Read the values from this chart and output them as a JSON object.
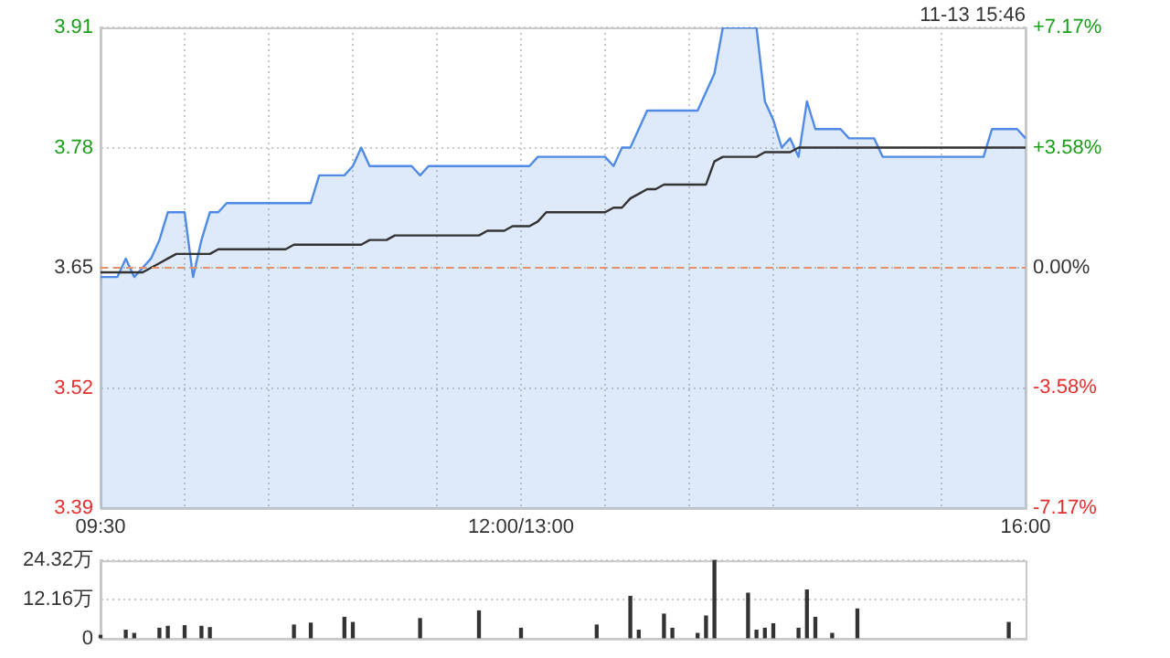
{
  "chart_data": [
    {
      "type": "line",
      "annotations": [
        "11-13 15:46"
      ],
      "categories": [
        "09:30",
        null,
        null,
        null,
        null,
        null,
        null,
        null,
        null,
        null,
        null,
        null,
        null,
        null,
        null,
        null,
        null,
        null,
        null,
        null,
        null,
        null,
        null,
        null,
        null,
        null,
        null,
        null,
        null,
        null,
        null,
        null,
        null,
        null,
        null,
        null,
        null,
        null,
        null,
        null,
        null,
        null,
        null,
        null,
        null,
        null,
        null,
        null,
        null,
        null,
        "12:00/13:00",
        null,
        null,
        null,
        null,
        null,
        null,
        null,
        null,
        null,
        null,
        null,
        null,
        null,
        null,
        null,
        null,
        null,
        null,
        null,
        null,
        null,
        null,
        null,
        null,
        null,
        null,
        null,
        null,
        null,
        null,
        null,
        null,
        null,
        null,
        null,
        null,
        null,
        null,
        null,
        null,
        null,
        null,
        null,
        null,
        null,
        null,
        null,
        null,
        null,
        null,
        null,
        null,
        null,
        null,
        null,
        null,
        null,
        null,
        null,
        "16:00"
      ],
      "series": [
        {
          "type": "area",
          "color": "#4f8ae6",
          "values": [
            3.64,
            3.64,
            3.64,
            3.66,
            3.64,
            3.65,
            3.66,
            3.68,
            3.71,
            3.71,
            3.71,
            3.64,
            3.68,
            3.71,
            3.71,
            3.72,
            3.72,
            3.72,
            3.72,
            3.72,
            3.72,
            3.72,
            3.72,
            3.72,
            3.72,
            3.72,
            3.75,
            3.75,
            3.75,
            3.75,
            3.76,
            3.78,
            3.76,
            3.76,
            3.76,
            3.76,
            3.76,
            3.76,
            3.75,
            3.76,
            3.76,
            3.76,
            3.76,
            3.76,
            3.76,
            3.76,
            3.76,
            3.76,
            3.76,
            3.76,
            3.76,
            3.76,
            3.77,
            3.77,
            3.77,
            3.77,
            3.77,
            3.77,
            3.77,
            3.77,
            3.77,
            3.76,
            3.78,
            3.78,
            3.8,
            3.82,
            3.82,
            3.82,
            3.82,
            3.82,
            3.82,
            3.82,
            3.84,
            3.86,
            3.91,
            3.91,
            3.91,
            3.91,
            3.91,
            3.83,
            3.81,
            3.78,
            3.79,
            3.77,
            3.83,
            3.8,
            3.8,
            3.8,
            3.8,
            3.79,
            3.79,
            3.79,
            3.79,
            3.77,
            3.77,
            3.77,
            3.77,
            3.77,
            3.77,
            3.77,
            3.77,
            3.77,
            3.77,
            3.77,
            3.77,
            3.77,
            3.8,
            3.8,
            3.8,
            3.8,
            3.79
          ]
        },
        {
          "type": "line",
          "color": "#333333",
          "values": [
            3.645,
            3.645,
            3.645,
            3.645,
            3.645,
            3.645,
            3.65,
            3.655,
            3.66,
            3.665,
            3.665,
            3.665,
            3.665,
            3.665,
            3.67,
            3.67,
            3.67,
            3.67,
            3.67,
            3.67,
            3.67,
            3.67,
            3.67,
            3.675,
            3.675,
            3.675,
            3.675,
            3.675,
            3.675,
            3.675,
            3.675,
            3.675,
            3.68,
            3.68,
            3.68,
            3.685,
            3.685,
            3.685,
            3.685,
            3.685,
            3.685,
            3.685,
            3.685,
            3.685,
            3.685,
            3.685,
            3.69,
            3.69,
            3.69,
            3.695,
            3.695,
            3.695,
            3.7,
            3.71,
            3.71,
            3.71,
            3.71,
            3.71,
            3.71,
            3.71,
            3.71,
            3.715,
            3.715,
            3.725,
            3.73,
            3.735,
            3.735,
            3.74,
            3.74,
            3.74,
            3.74,
            3.74,
            3.74,
            3.765,
            3.77,
            3.77,
            3.77,
            3.77,
            3.77,
            3.775,
            3.775,
            3.775,
            3.775,
            3.78,
            3.78,
            3.78,
            3.78,
            3.78,
            3.78,
            3.78,
            3.78,
            3.78,
            3.78,
            3.78,
            3.78,
            3.78,
            3.78,
            3.78,
            3.78,
            3.78,
            3.78,
            3.78,
            3.78,
            3.78,
            3.78,
            3.78,
            3.78,
            3.78,
            3.78,
            3.78,
            3.78
          ]
        }
      ],
      "ylim": [
        3.39,
        3.91
      ],
      "yticks": [
        3.39,
        3.52,
        3.65,
        3.78,
        3.91
      ],
      "y2lim": [
        -7.17,
        7.17
      ],
      "y2ticks": [
        {
          "value": -7.17,
          "label": "-7.17%"
        },
        {
          "value": -3.58,
          "label": "-3.58%"
        },
        {
          "value": 0,
          "label": "0.00%"
        },
        {
          "value": 3.58,
          "label": "+3.58%"
        },
        {
          "value": 7.17,
          "label": "+7.17%"
        }
      ],
      "ref_lines": [
        {
          "axis": "y",
          "value": 3.65,
          "color": "#e8906a",
          "line_style": "dashed"
        }
      ],
      "grid": true,
      "legend": false
    },
    {
      "type": "bar",
      "color": "#333333",
      "categories": [
        null,
        null,
        null,
        null,
        null,
        null,
        null,
        null,
        null,
        null,
        null,
        null,
        null,
        null,
        null,
        null,
        null,
        null,
        null,
        null,
        null,
        null,
        null,
        null,
        null,
        null,
        null,
        null,
        null,
        null,
        null,
        null,
        null,
        null,
        null,
        null,
        null,
        null,
        null,
        null,
        null,
        null,
        null,
        null,
        null,
        null,
        null,
        null,
        null,
        null,
        null,
        null,
        null,
        null,
        null,
        null,
        null,
        null,
        null,
        null,
        null,
        null,
        null,
        null,
        null,
        null,
        null,
        null,
        null,
        null,
        null,
        null,
        null,
        null,
        null,
        null,
        null,
        null,
        null,
        null,
        null,
        null,
        null,
        null,
        null,
        null,
        null,
        null,
        null,
        null,
        null,
        null,
        null,
        null,
        null,
        null,
        null,
        null,
        null,
        null,
        null,
        null,
        null,
        null,
        null,
        null,
        null,
        null,
        null,
        null,
        null
      ],
      "values": [
        1.0,
        null,
        null,
        2.6,
        1.6,
        null,
        null,
        3.2,
        3.8,
        null,
        4.0,
        null,
        3.8,
        3.4,
        null,
        null,
        null,
        null,
        null,
        null,
        null,
        null,
        null,
        4.2,
        null,
        4.8,
        null,
        null,
        null,
        6.6,
        5.0,
        null,
        null,
        null,
        null,
        null,
        null,
        null,
        6.2,
        null,
        null,
        null,
        null,
        null,
        null,
        8.6,
        null,
        null,
        null,
        null,
        3.2,
        null,
        null,
        null,
        null,
        null,
        null,
        null,
        null,
        4.2,
        null,
        null,
        null,
        13.1,
        2.6,
        null,
        null,
        7.6,
        3.2,
        null,
        null,
        1.6,
        7.0,
        24.3,
        null,
        null,
        null,
        14.1,
        2.6,
        3.2,
        4.6,
        null,
        null,
        3.2,
        15.1,
        6.6,
        null,
        1.6,
        null,
        null,
        9.2,
        null,
        null,
        null,
        null,
        null,
        null,
        null,
        null,
        null,
        null,
        null,
        null,
        null,
        null,
        null,
        null,
        null,
        5.0,
        null,
        null
      ],
      "ylim": [
        0,
        24.32
      ],
      "yticks": [
        0,
        {
          "value": 12.16,
          "label": "12.16万"
        },
        {
          "value": 24.32,
          "label": "24.32万"
        }
      ],
      "tick_labels": "y",
      "grid": "y",
      "legend": false
    }
  ]
}
